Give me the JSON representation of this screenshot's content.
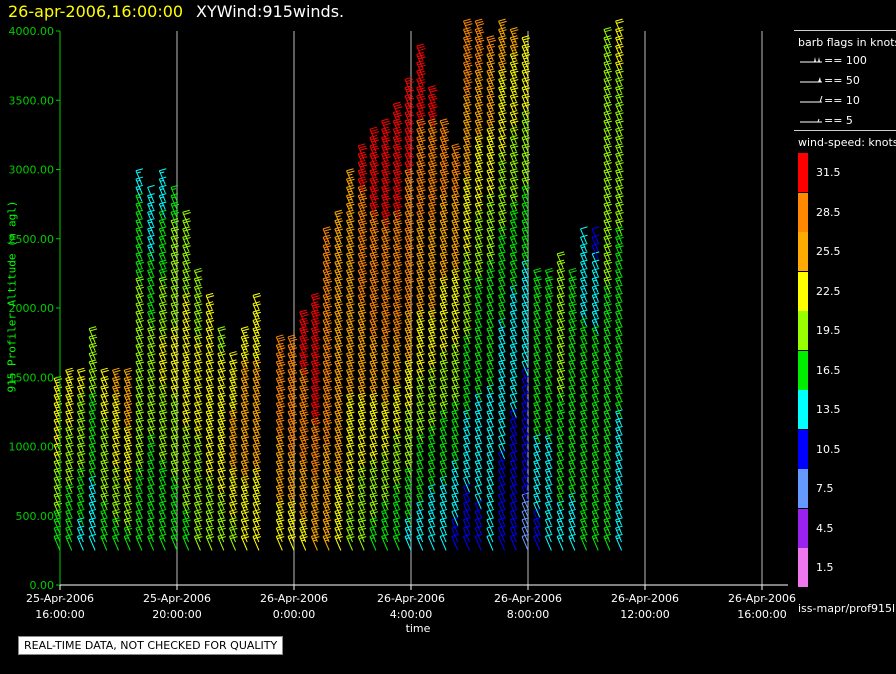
{
  "title": {
    "date": "26-apr-2006,16:00:00",
    "name": "XYWind:915winds."
  },
  "quality_note": "REAL-TIME DATA, NOT CHECKED FOR QUALITY",
  "source": "iss-mapr/prof915l",
  "legend": {
    "barbs_title": "barb flags in knots",
    "flags": [
      {
        "label": "== 100"
      },
      {
        "label": "== 50"
      },
      {
        "label": "== 10"
      },
      {
        "label": "== 5"
      }
    ],
    "ws_title": "wind-speed: knots",
    "bins": [
      {
        "label": "31.5",
        "color": "#ff0000"
      },
      {
        "label": "28.5",
        "color": "#ff8800"
      },
      {
        "label": "25.5",
        "color": "#ffaa00"
      },
      {
        "label": "22.5",
        "color": "#ffff00"
      },
      {
        "label": "19.5",
        "color": "#99ff00"
      },
      {
        "label": "16.5",
        "color": "#00ee00"
      },
      {
        "label": "13.5",
        "color": "#00ffff"
      },
      {
        "label": "10.5",
        "color": "#0000ff"
      },
      {
        "label": "7.5",
        "color": "#6699ff"
      },
      {
        "label": "4.5",
        "color": "#9922ee"
      },
      {
        "label": "1.5",
        "color": "#ee77ee"
      }
    ]
  },
  "chart_data": {
    "type": "wind-barb time-height",
    "ylabel": "915 Profiler Altitude (m agl)",
    "xlabel": "time",
    "ylim": [
      0,
      4000
    ],
    "yticks": [
      "0.00",
      "500.00",
      "1000.00",
      "1500.00",
      "2000.00",
      "2500.00",
      "3000.00",
      "3500.00",
      "4000.00"
    ],
    "xlim": [
      0,
      1
    ],
    "xticks": [
      {
        "date": "25-Apr-2006",
        "time": "16:00:00"
      },
      {
        "date": "25-Apr-2006",
        "time": "20:00:00"
      },
      {
        "date": "26-Apr-2006",
        "time": "0:00:00"
      },
      {
        "date": "26-Apr-2006",
        "time": "4:00:00"
      },
      {
        "date": "26-Apr-2006",
        "time": "8:00:00"
      },
      {
        "date": "26-Apr-2006",
        "time": "12:00:00"
      },
      {
        "date": "26-Apr-2006",
        "time": "16:00:00"
      }
    ],
    "grid": "vertical",
    "columns": [
      {
        "h": 0.0,
        "top": 1400,
        "s": [
          16,
          21,
          24
        ]
      },
      {
        "h": 0.4,
        "top": 1500,
        "s": [
          15,
          20,
          24
        ]
      },
      {
        "h": 0.8,
        "top": 1500,
        "s": [
          14,
          19,
          22
        ]
      },
      {
        "h": 1.2,
        "top": 1800,
        "s": [
          12,
          17,
          20
        ]
      },
      {
        "h": 1.6,
        "top": 1450,
        "s": [
          16,
          20,
          22
        ]
      },
      {
        "h": 2.0,
        "top": 1500,
        "s": [
          17,
          22,
          25
        ]
      },
      {
        "h": 2.4,
        "top": 1450,
        "s": [
          17,
          23,
          26
        ]
      },
      {
        "h": 2.8,
        "top": 2900,
        "s": [
          16,
          21,
          14
        ]
      },
      {
        "h": 3.2,
        "top": 2800,
        "s": [
          15,
          20,
          12
        ]
      },
      {
        "h": 3.6,
        "top": 2900,
        "s": [
          15,
          22,
          13
        ]
      },
      {
        "h": 4.0,
        "top": 2800,
        "s": [
          16,
          22,
          17
        ]
      },
      {
        "h": 4.4,
        "top": 2600,
        "s": [
          17,
          23,
          19
        ]
      },
      {
        "h": 4.8,
        "top": 2200,
        "s": [
          18,
          22,
          20
        ]
      },
      {
        "h": 5.2,
        "top": 2000,
        "s": [
          19,
          23,
          21
        ]
      },
      {
        "h": 5.6,
        "top": 1800,
        "s": [
          19,
          24,
          20
        ]
      },
      {
        "h": 6.0,
        "top": 1600,
        "s": [
          20,
          25,
          22
        ]
      },
      {
        "h": 6.4,
        "top": 1800,
        "s": [
          21,
          26,
          23
        ]
      },
      {
        "h": 6.8,
        "top": 2000,
        "s": [
          21,
          26,
          22
        ]
      },
      {
        "h": 7.6,
        "top": 1700,
        "s": [
          22,
          27,
          29
        ]
      },
      {
        "h": 8.0,
        "top": 1700,
        "s": [
          22,
          28,
          30
        ]
      },
      {
        "h": 8.4,
        "top": 1900,
        "s": [
          23,
          29,
          31
        ]
      },
      {
        "h": 8.8,
        "top": 2000,
        "s": [
          24,
          30,
          31
        ]
      },
      {
        "h": 9.2,
        "top": 2500,
        "s": [
          24,
          29,
          27
        ]
      },
      {
        "h": 9.6,
        "top": 2600,
        "s": [
          22,
          27,
          26
        ]
      },
      {
        "h": 10.0,
        "top": 2900,
        "s": [
          20,
          25,
          26
        ]
      },
      {
        "h": 10.4,
        "top": 3100,
        "s": [
          18,
          26,
          31
        ]
      },
      {
        "h": 10.8,
        "top": 3200,
        "s": [
          17,
          27,
          32
        ]
      },
      {
        "h": 11.2,
        "top": 3300,
        "s": [
          16,
          28,
          32
        ]
      },
      {
        "h": 11.6,
        "top": 3400,
        "s": [
          15,
          28,
          32
        ]
      },
      {
        "h": 12.0,
        "top": 3600,
        "s": [
          14,
          27,
          32
        ]
      },
      {
        "h": 12.4,
        "top": 3800,
        "s": [
          13,
          25,
          32
        ]
      },
      {
        "h": 12.8,
        "top": 3500,
        "s": [
          12,
          24,
          31
        ]
      },
      {
        "h": 13.2,
        "top": 3300,
        "s": [
          12,
          22,
          30
        ]
      },
      {
        "h": 13.6,
        "top": 3100,
        "s": [
          11,
          21,
          29
        ]
      },
      {
        "h": 14.0,
        "top": 4000,
        "s": [
          10,
          20,
          30
        ]
      },
      {
        "h": 14.4,
        "top": 4000,
        "s": [
          11,
          18,
          29
        ]
      },
      {
        "h": 14.8,
        "top": 3900,
        "s": [
          12,
          17,
          28
        ]
      },
      {
        "h": 15.2,
        "top": 4000,
        "s": [
          10,
          16,
          26
        ]
      },
      {
        "h": 15.6,
        "top": 3950,
        "s": [
          9,
          15,
          25
        ]
      },
      {
        "h": 16.0,
        "top": 3900,
        "s": [
          8,
          14,
          24
        ]
      },
      {
        "h": 16.4,
        "top": 2200,
        "s": [
          11,
          16,
          18
        ]
      },
      {
        "h": 16.8,
        "top": 2200,
        "s": [
          12,
          16,
          18
        ]
      },
      {
        "h": 17.2,
        "top": 2300,
        "s": [
          14,
          18,
          19
        ]
      },
      {
        "h": 17.6,
        "top": 2200,
        "s": [
          14,
          17,
          18
        ]
      },
      {
        "h": 18.0,
        "top": 2500,
        "s": [
          15,
          17,
          12
        ]
      },
      {
        "h": 18.4,
        "top": 2500,
        "s": [
          16,
          17,
          11
        ]
      },
      {
        "h": 18.8,
        "top": 3950,
        "s": [
          15,
          18,
          20
        ]
      },
      {
        "h": 19.2,
        "top": 4000,
        "s": [
          13,
          17,
          22
        ]
      }
    ]
  }
}
